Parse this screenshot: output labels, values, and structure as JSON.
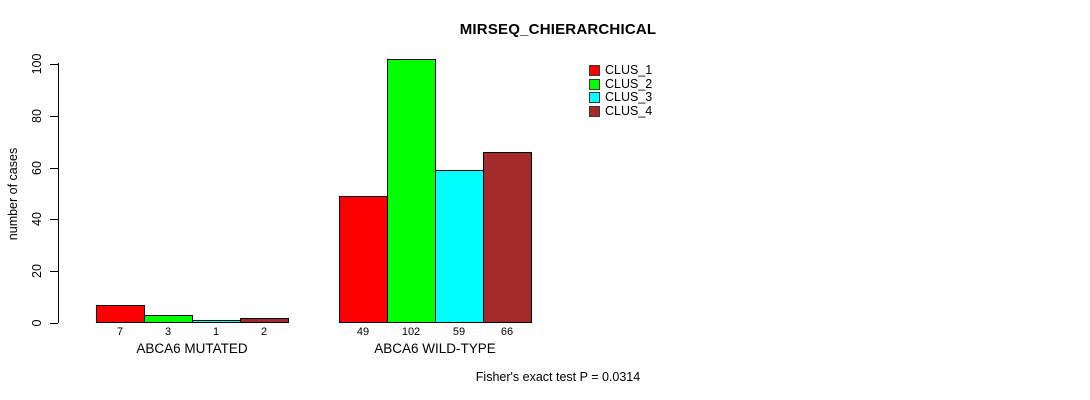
{
  "figure": {
    "background_color": "#ffffff",
    "axis_color": "#000000"
  },
  "chart_data": {
    "type": "bar",
    "title": "MIRSEQ_CHIERARCHICAL",
    "ylabel": "number of cases",
    "xlabel": "",
    "ylim": [
      0,
      102
    ],
    "yticks": [
      0,
      20,
      40,
      60,
      80,
      100
    ],
    "grid": false,
    "legend_position": "top-right",
    "categories": [
      "ABCA6 MUTATED",
      "ABCA6 WILD-TYPE"
    ],
    "series": [
      {
        "name": "CLUS_1",
        "color": "#ff0000",
        "values": [
          7,
          49
        ]
      },
      {
        "name": "CLUS_2",
        "color": "#00ff00",
        "values": [
          3,
          102
        ]
      },
      {
        "name": "CLUS_3",
        "color": "#00ffff",
        "values": [
          1,
          59
        ]
      },
      {
        "name": "CLUS_4",
        "color": "#a52a2a",
        "values": [
          2,
          66
        ]
      }
    ],
    "bar_value_labels": [
      [
        "7",
        "3",
        "1",
        "2"
      ],
      [
        "49",
        "102",
        "59",
        "66"
      ]
    ],
    "footer": "Fisher's exact test P = 0.0314"
  }
}
